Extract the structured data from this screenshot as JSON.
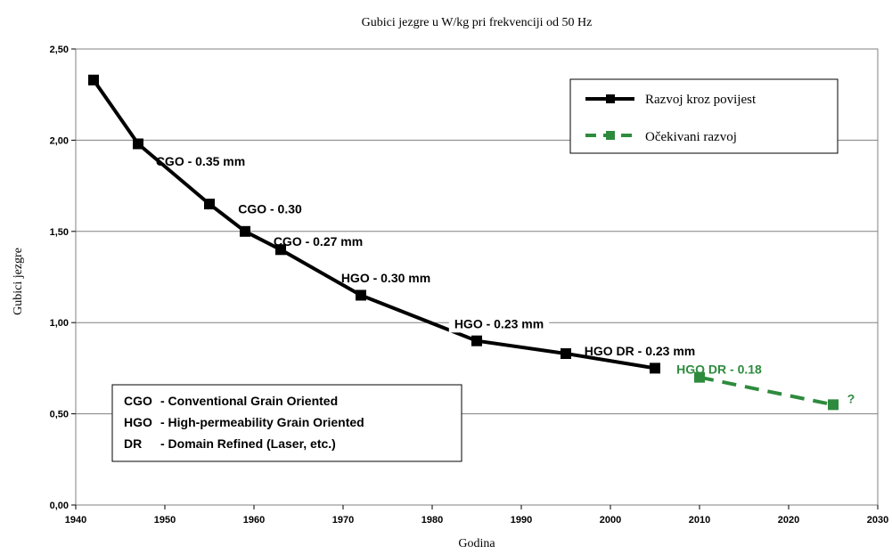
{
  "chart_data": {
    "type": "line",
    "title": "Gubici jezgre u W/kg pri frekvenciji od 50 Hz",
    "xlabel": "Godina",
    "ylabel": "Gubici jezgre",
    "xlim": [
      1940,
      2030
    ],
    "ylim": [
      0,
      2.5
    ],
    "x_ticks": [
      1940,
      1950,
      1960,
      1970,
      1980,
      1990,
      2000,
      2010,
      2020,
      2030
    ],
    "y_ticks": [
      0,
      0.5,
      1.0,
      1.5,
      2.0,
      2.5
    ],
    "y_tick_labels": [
      "0,00",
      "0,50",
      "1,00",
      "1,50",
      "2,00",
      "2,50"
    ],
    "grid": "horizontal",
    "legend_position": "top-right",
    "series": [
      {
        "name": "Razvoj kroz povijest",
        "color": "#000000",
        "style": "solid",
        "marker": "square",
        "points": [
          [
            1942,
            2.33
          ],
          [
            1947,
            1.98
          ],
          [
            1955,
            1.65
          ],
          [
            1959,
            1.5
          ],
          [
            1963,
            1.4
          ],
          [
            1972,
            1.15
          ],
          [
            1985,
            0.9
          ],
          [
            1995,
            0.83
          ],
          [
            2005,
            0.75
          ]
        ]
      },
      {
        "name": "Očekivani razvoj",
        "color": "#2e8b3e",
        "style": "dashed",
        "marker": "square",
        "points": [
          [
            2010,
            0.7
          ],
          [
            2025,
            0.55
          ]
        ]
      }
    ],
    "annotations": [
      {
        "text": "CGO - 0.35 mm",
        "x": 1954,
        "y": 1.86,
        "color": "#000000"
      },
      {
        "text": "CGO - 0.30",
        "x": 1961.8,
        "y": 1.6,
        "color": "#000000"
      },
      {
        "text": "CGO - 0.27 mm",
        "x": 1967.2,
        "y": 1.42,
        "color": "#000000"
      },
      {
        "text": "HGO - 0.30 mm",
        "x": 1974.8,
        "y": 1.22,
        "color": "#000000"
      },
      {
        "text": "HGO - 0.23 mm",
        "x": 1987.5,
        "y": 0.97,
        "color": "#000000"
      },
      {
        "text": "HGO DR - 0.23 mm",
        "x": 2003.3,
        "y": 0.82,
        "color": "#000000"
      },
      {
        "text": "HGO DR - 0.18",
        "x": 2012.2,
        "y": 0.72,
        "color": "#2e8b3e"
      },
      {
        "text": "?",
        "x": 2027,
        "y": 0.56,
        "color": "#2e8b3e"
      }
    ],
    "abbreviations": [
      {
        "abbr": "CGO",
        "desc": "-  Conventional Grain Oriented"
      },
      {
        "abbr": "HGO",
        "desc": "-  High-permeability Grain Oriented"
      },
      {
        "abbr": "DR",
        "desc": "-  Domain Refined (Laser, etc.)"
      }
    ]
  }
}
